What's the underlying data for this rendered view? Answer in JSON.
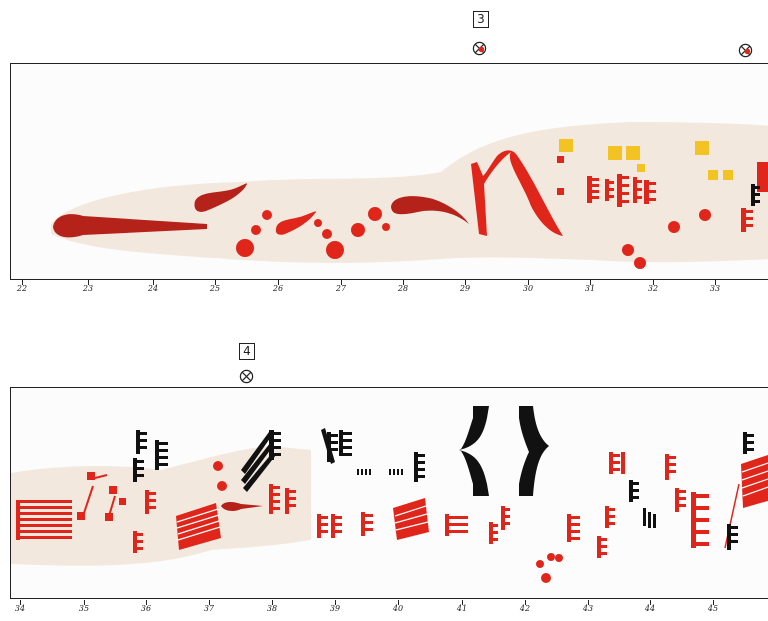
{
  "section_a": {
    "number": "3",
    "ruler_labels": [
      "22",
      "23",
      "24",
      "25",
      "26",
      "27",
      "28",
      "29",
      "30",
      "31",
      "32",
      "33"
    ]
  },
  "section_b": {
    "number": "4",
    "ruler_labels": [
      "34",
      "35",
      "36",
      "37",
      "38",
      "39",
      "40",
      "41",
      "42",
      "43",
      "44",
      "45"
    ]
  },
  "colors": {
    "frame": "#222222",
    "band": "#f3e8de",
    "red": "#e0261b",
    "dark_red": "#b5221a",
    "yellow": "#f2c322",
    "black": "#111111"
  },
  "symbols": {
    "cross_marker": "circled-x-icon",
    "red_cross_marker": "circled-x-red-icon"
  }
}
